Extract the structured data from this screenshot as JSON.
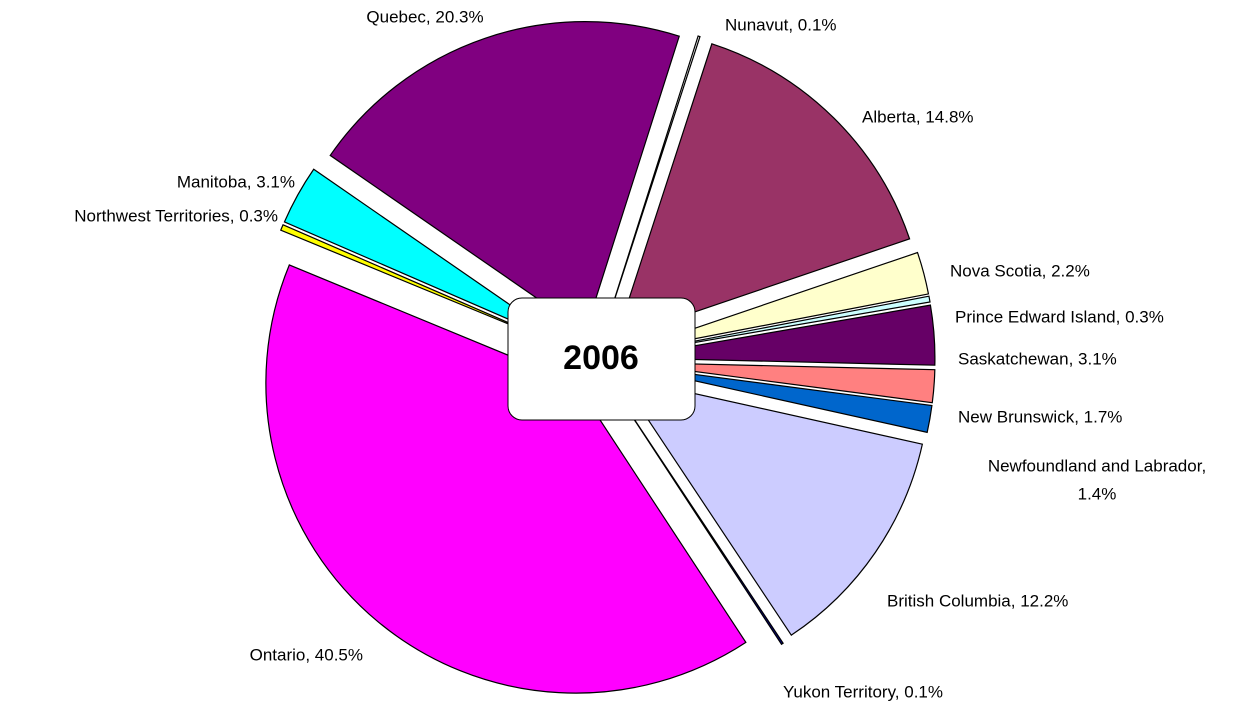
{
  "chart_data": {
    "type": "pie",
    "title": "2006",
    "categories": [
      "Alberta",
      "Nova Scotia",
      "Prince Edward Island",
      "Saskatchewan",
      "New Brunswick",
      "Newfoundland and Labrador",
      "British Columbia",
      "Yukon Territory",
      "Ontario",
      "Northwest Territories",
      "Manitoba",
      "Quebec",
      "Nunavut"
    ],
    "values": [
      14.8,
      2.2,
      0.3,
      3.1,
      1.7,
      1.4,
      12.2,
      0.1,
      40.5,
      0.3,
      3.1,
      20.3,
      0.1
    ],
    "labels": [
      "Alberta, 14.8%",
      "Nova Scotia, 2.2%",
      "Prince Edward Island, 0.3%",
      "Saskatchewan, 3.1%",
      "New Brunswick, 1.7%",
      [
        "Newfoundland and Labrador,",
        "1.4%"
      ],
      "British Columbia, 12.2%",
      "Yukon Territory, 0.1%",
      "Ontario, 40.5%",
      "Northwest Territories, 0.3%",
      "Manitoba, 3.1%",
      "Quebec, 20.3%",
      "Nunavut, 0.1%"
    ],
    "colors": [
      "#993366",
      "#ffffcc",
      "#ccffff",
      "#660066",
      "#ff8080",
      "#0066cc",
      "#ccccff",
      "#000080",
      "#ff00ff",
      "#ffff00",
      "#00ffff",
      "#800080",
      "#ffffff"
    ]
  }
}
